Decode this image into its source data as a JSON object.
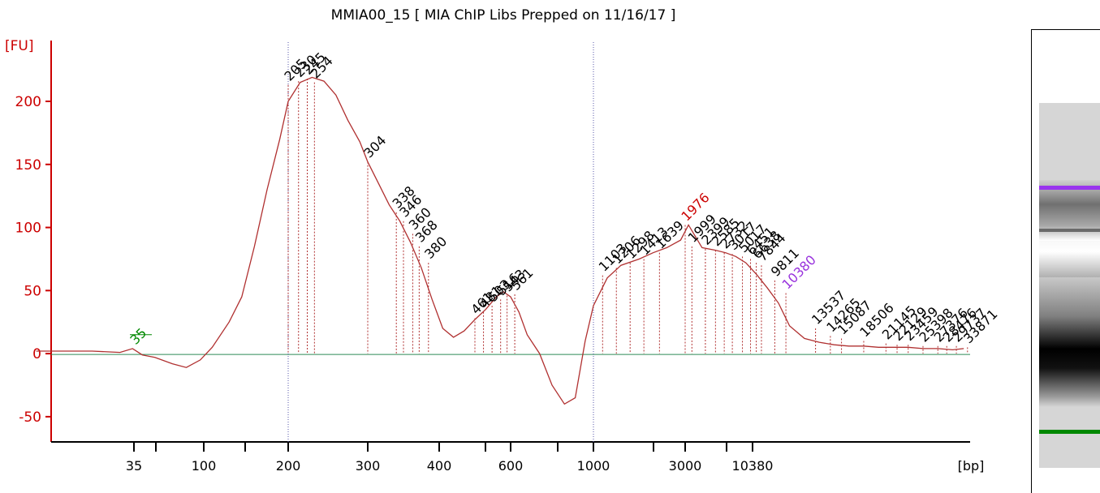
{
  "chart_data": {
    "type": "line",
    "title": "MMIA00_15  [ MIA ChIP Libs Prepped on 11/16/17 ]",
    "ylabel": "[FU]",
    "xlabel": "[bp]",
    "ylim": [
      -70,
      245
    ],
    "y_ticks": [
      -50,
      0,
      50,
      100,
      150,
      200
    ],
    "x_ticks": [
      "35",
      "100",
      "200",
      "300",
      "400",
      "600",
      "1000",
      "3000",
      "10380"
    ],
    "x_axis_note": "Non-linear bp axis; x values below are positions in ladder tick-index units (35=0, 100=1, 200=2, 300=3, 400=4, 600=5, 1000=6, 3000=7, 10380=8)",
    "series": [
      {
        "color": "#b03030",
        "x": [
          -1.4,
          -0.6,
          -0.2,
          -0.02,
          0.12,
          0.3,
          0.55,
          0.75,
          0.95,
          1.1,
          1.3,
          1.45,
          1.6,
          1.75,
          1.9,
          2.0,
          2.15,
          2.3,
          2.45,
          2.6,
          2.75,
          2.9,
          3.0,
          3.15,
          3.3,
          3.45,
          3.6,
          3.75,
          3.9,
          4.05,
          4.2,
          4.35,
          4.5,
          4.65,
          4.8,
          4.9,
          5.0,
          5.1,
          5.2,
          5.35,
          5.5,
          5.65,
          5.78,
          5.9,
          6.0,
          6.15,
          6.3,
          6.5,
          6.65,
          6.8,
          6.95,
          7.05,
          7.25,
          7.45,
          7.6,
          7.75,
          7.9,
          8.05,
          8.2,
          8.35,
          8.5,
          8.7,
          8.9,
          9.1,
          9.3,
          9.5,
          9.7,
          9.9,
          10.1,
          10.3,
          10.5,
          10.7,
          10.85
        ],
        "y": [
          2,
          2,
          1,
          4,
          -1,
          -3,
          -8,
          -11,
          -5,
          5,
          25,
          45,
          85,
          130,
          170,
          200,
          215,
          219,
          216,
          205,
          185,
          168,
          152,
          135,
          118,
          105,
          88,
          68,
          43,
          20,
          13,
          18,
          27,
          35,
          45,
          49,
          45,
          33,
          15,
          0,
          -25,
          -40,
          -35,
          10,
          38,
          60,
          70,
          75,
          80,
          84,
          90,
          102,
          84,
          82,
          80,
          77,
          72,
          63,
          52,
          40,
          22,
          12,
          9,
          7,
          6,
          6,
          5,
          5,
          5,
          4,
          4,
          3,
          4
        ]
      }
    ],
    "peaks": [
      {
        "x": 2.0,
        "y": 213,
        "label": "205",
        "color": "#000000"
      },
      {
        "x": 2.13,
        "y": 216,
        "label": "230",
        "color": "#000000"
      },
      {
        "x": 2.24,
        "y": 218,
        "label": "245",
        "color": "#000000"
      },
      {
        "x": 2.33,
        "y": 215,
        "label": "254",
        "color": "#000000"
      },
      {
        "x": 3.0,
        "y": 152,
        "label": "304",
        "color": "#000000"
      },
      {
        "x": 3.4,
        "y": 112,
        "label": "338",
        "color": "#000000"
      },
      {
        "x": 3.5,
        "y": 105,
        "label": "346",
        "color": "#000000"
      },
      {
        "x": 3.63,
        "y": 95,
        "label": "360",
        "color": "#000000"
      },
      {
        "x": 3.72,
        "y": 85,
        "label": "368",
        "color": "#000000"
      },
      {
        "x": 3.85,
        "y": 72,
        "label": "380",
        "color": "#000000"
      },
      {
        "x": 4.5,
        "y": 28,
        "label": "461",
        "color": "#000000"
      },
      {
        "x": 4.62,
        "y": 33,
        "label": "481",
        "color": "#000000"
      },
      {
        "x": 4.74,
        "y": 38,
        "label": "503",
        "color": "#000000"
      },
      {
        "x": 4.86,
        "y": 43,
        "label": "516",
        "color": "#000000"
      },
      {
        "x": 4.95,
        "y": 46,
        "label": "543",
        "color": "#000000"
      },
      {
        "x": 5.05,
        "y": 47,
        "label": "561",
        "color": "#000000"
      },
      {
        "x": 6.1,
        "y": 62,
        "label": "1103",
        "color": "#000000"
      },
      {
        "x": 6.25,
        "y": 68,
        "label": "1206",
        "color": "#000000"
      },
      {
        "x": 6.4,
        "y": 72,
        "label": "1298",
        "color": "#000000"
      },
      {
        "x": 6.55,
        "y": 75,
        "label": "1413",
        "color": "#000000"
      },
      {
        "x": 6.72,
        "y": 80,
        "label": "1639",
        "color": "#000000"
      },
      {
        "x": 7.0,
        "y": 102,
        "label": "1976",
        "color": "#cc0000"
      },
      {
        "x": 7.1,
        "y": 85,
        "label": "1999",
        "color": "#000000"
      },
      {
        "x": 7.3,
        "y": 83,
        "label": "2399",
        "color": "#000000"
      },
      {
        "x": 7.45,
        "y": 82,
        "label": "2585",
        "color": "#000000"
      },
      {
        "x": 7.58,
        "y": 80,
        "label": "2732",
        "color": "#000000"
      },
      {
        "x": 7.7,
        "y": 79,
        "label": "3017",
        "color": "#000000"
      },
      {
        "x": 7.85,
        "y": 77,
        "label": "5017",
        "color": "#000000"
      },
      {
        "x": 7.97,
        "y": 75,
        "label": "6451",
        "color": "#000000"
      },
      {
        "x": 8.05,
        "y": 72,
        "label": "6638",
        "color": "#000000"
      },
      {
        "x": 8.12,
        "y": 70,
        "label": "7844",
        "color": "#000000"
      },
      {
        "x": 8.3,
        "y": 58,
        "label": "9811",
        "color": "#000000"
      },
      {
        "x": 8.45,
        "y": 48,
        "label": "10380",
        "color": "#9933dd"
      },
      {
        "x": 8.85,
        "y": 20,
        "label": "13537",
        "color": "#000000"
      },
      {
        "x": 9.05,
        "y": 14,
        "label": "14265",
        "color": "#000000"
      },
      {
        "x": 9.2,
        "y": 12,
        "label": "15087",
        "color": "#000000"
      },
      {
        "x": 9.5,
        "y": 10,
        "label": "18506",
        "color": "#000000"
      },
      {
        "x": 9.8,
        "y": 8,
        "label": "21145",
        "color": "#000000"
      },
      {
        "x": 9.95,
        "y": 7,
        "label": "22129",
        "color": "#000000"
      },
      {
        "x": 10.1,
        "y": 7,
        "label": "23459",
        "color": "#000000"
      },
      {
        "x": 10.3,
        "y": 6,
        "label": "25398",
        "color": "#000000"
      },
      {
        "x": 10.5,
        "y": 6,
        "label": "27376",
        "color": "#000000"
      },
      {
        "x": 10.62,
        "y": 6,
        "label": "28476",
        "color": "#000000"
      },
      {
        "x": 10.75,
        "y": 6,
        "label": "29737",
        "color": "#000000"
      },
      {
        "x": 10.9,
        "y": 5,
        "label": "33871",
        "color": "#000000"
      },
      {
        "x": 0.0,
        "y": 4,
        "label": "35",
        "color": "#008800"
      }
    ],
    "grid": false,
    "colors": {
      "axis": "#cc0000",
      "trace": "#b03030",
      "baseline": "#2e8b57",
      "marker_line": "#5555aa",
      "lower_marker": "#008800",
      "upper_marker": "#9933dd"
    }
  },
  "gel": {
    "upper_marker_color": "#9933ee",
    "lower_marker_color": "#008800"
  }
}
